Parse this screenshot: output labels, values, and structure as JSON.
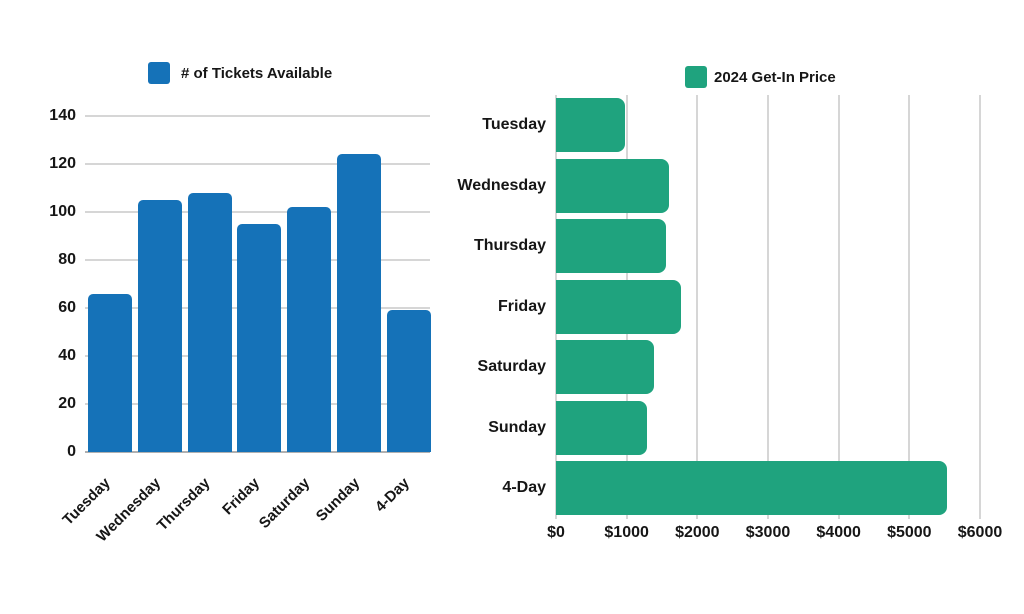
{
  "canvas": {
    "background": "#ffffff",
    "text_color": "#161616",
    "grid_color": "#d6d6d6",
    "baseline_color": "#b0b0b0"
  },
  "chart_data": [
    {
      "id": "tickets-available",
      "type": "bar",
      "orientation": "vertical",
      "legend": "# of Tickets Available",
      "legend_position": "top-center",
      "bar_color": "#1572b8",
      "categories": [
        "Tuesday",
        "Wednesday",
        "Thursday",
        "Friday",
        "Saturday",
        "Sunday",
        "4-Day"
      ],
      "values": [
        66,
        105,
        108,
        95,
        102,
        124,
        59
      ],
      "ylim": [
        0,
        140
      ],
      "yticks": [
        0,
        20,
        40,
        60,
        80,
        100,
        120,
        140
      ],
      "grid": true
    },
    {
      "id": "get-in-price",
      "type": "bar",
      "orientation": "horizontal",
      "legend": "2024 Get-In Price",
      "legend_position": "top-center",
      "bar_color": "#1fa37e",
      "categories": [
        "Tuesday",
        "Wednesday",
        "Thursday",
        "Friday",
        "Saturday",
        "Sunday",
        "4-Day"
      ],
      "values": [
        975,
        1600,
        1550,
        1775,
        1390,
        1290,
        5530
      ],
      "xlim": [
        0,
        6000
      ],
      "xticks": [
        0,
        1000,
        2000,
        3000,
        4000,
        5000,
        6000
      ],
      "xtick_labels": [
        "$0",
        "$1000",
        "$2000",
        "$3000",
        "$4000",
        "$5000",
        "$6000"
      ],
      "grid": true
    }
  ]
}
